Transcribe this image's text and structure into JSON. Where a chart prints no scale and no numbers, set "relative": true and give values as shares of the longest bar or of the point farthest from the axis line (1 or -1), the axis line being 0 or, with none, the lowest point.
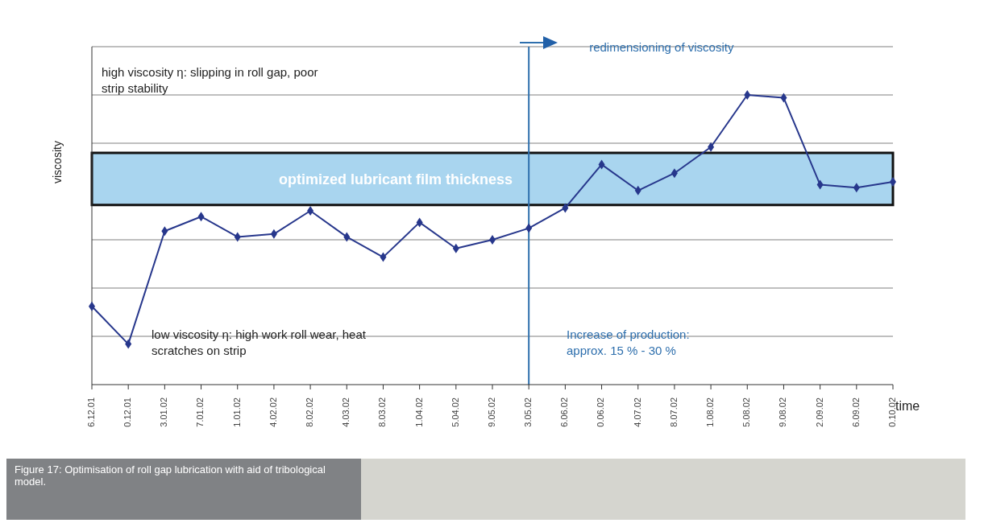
{
  "chart_data": {
    "type": "line",
    "relative": true,
    "xlabel": "time",
    "ylabel": "viscosity",
    "categories": [
      "6.12.01",
      "0.12.01",
      "3.01.02",
      "7.01.02",
      "1.01.02",
      "4.02.02",
      "8.02.02",
      "4.03.02",
      "8.03.02",
      "1.04.02",
      "5.04.02",
      "9.05.02",
      "3.05.02",
      "6.06.02",
      "0.06.02",
      "4.07.02",
      "8.07.02",
      "1.08.02",
      "5.08.02",
      "9.08.02",
      "2.09.02",
      "6.09.02",
      "0.10.02"
    ],
    "series": [
      {
        "color": "#27378c",
        "values": [
          0.27,
          0.14,
          0.53,
          0.58,
          0.51,
          0.52,
          0.6,
          0.51,
          0.44,
          0.56,
          0.47,
          0.5,
          0.54,
          0.61,
          0.76,
          0.67,
          0.73,
          0.82,
          1,
          0.99,
          0.69,
          0.68,
          0.7
        ]
      }
    ],
    "marker": "diamond",
    "grid": "y",
    "bands": [
      {
        "axis": "y",
        "from": 0.62,
        "to": 0.8,
        "label": "optimized lubricant film thickness",
        "color": "#a9d5ef"
      }
    ],
    "ref_lines": [
      {
        "axis": "x",
        "value": "3.05.02",
        "label": "redimensioning of viscosity",
        "color": "#2e6fad"
      }
    ],
    "annotations": [
      "high viscosity η: slipping in roll gap, poor strip stability",
      "low viscosity η: high work roll wear, heat scratches on strip",
      "Increase of production: approx. 15 % - 30 %",
      "Figure 17: Optimisation of roll gap lubrication with aid of tribological model."
    ]
  }
}
